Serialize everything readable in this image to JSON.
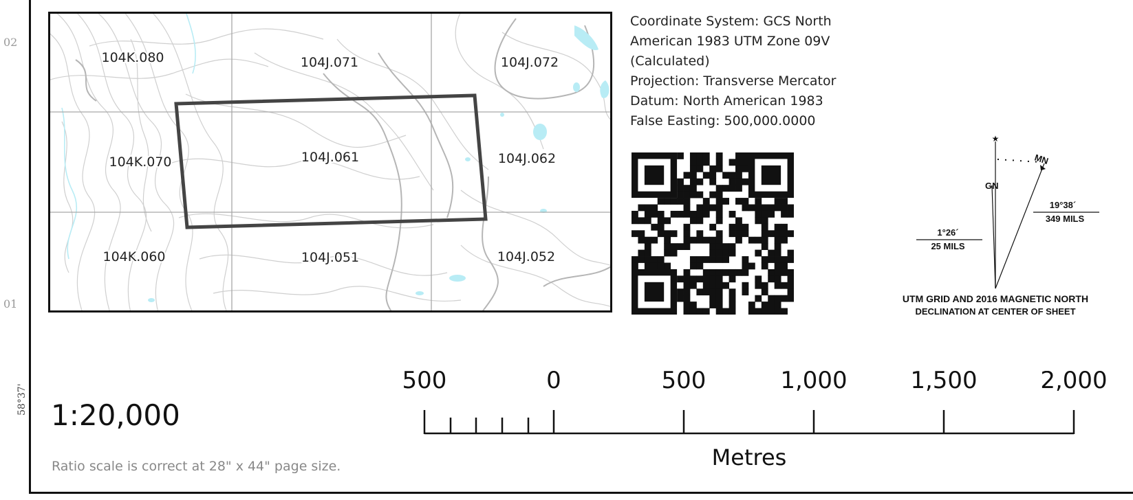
{
  "map": {
    "index_tiles": [
      {
        "label": "104K.080"
      },
      {
        "label": "104J.071"
      },
      {
        "label": "104J.072"
      },
      {
        "label": "104K.070"
      },
      {
        "label": "104J.061"
      },
      {
        "label": "104J.062"
      },
      {
        "label": "104K.060"
      },
      {
        "label": "104J.051"
      },
      {
        "label": "104J.052"
      }
    ]
  },
  "margin": {
    "tick_top": "02",
    "tick_bottom": "01",
    "latitude": "58°37'"
  },
  "coordinate_info": {
    "lines": [
      "Coordinate System: GCS North",
      "American 1983 UTM Zone 09V",
      "(Calculated)",
      "Projection: Transverse Mercator",
      "Datum: North American 1983",
      "False Easting: 500,000.0000"
    ]
  },
  "declination": {
    "star": "★",
    "mn_label": "MN",
    "gn_label": "GN",
    "mn_angle": "19°38´",
    "mn_mils": "349 MILS",
    "gn_angle": "1°26´",
    "gn_mils": "25 MILS",
    "caption_line1": "UTM GRID AND 2016 MAGNETIC NORTH",
    "caption_line2": "DECLINATION AT CENTER OF SHEET"
  },
  "scale": {
    "ratio": "1:20,000",
    "note": "Ratio scale is correct at 28\" x 44\" page size.",
    "unit": "Metres",
    "labels": [
      "500",
      "0",
      "500",
      "1,000",
      "1,500",
      "2,000"
    ]
  }
}
